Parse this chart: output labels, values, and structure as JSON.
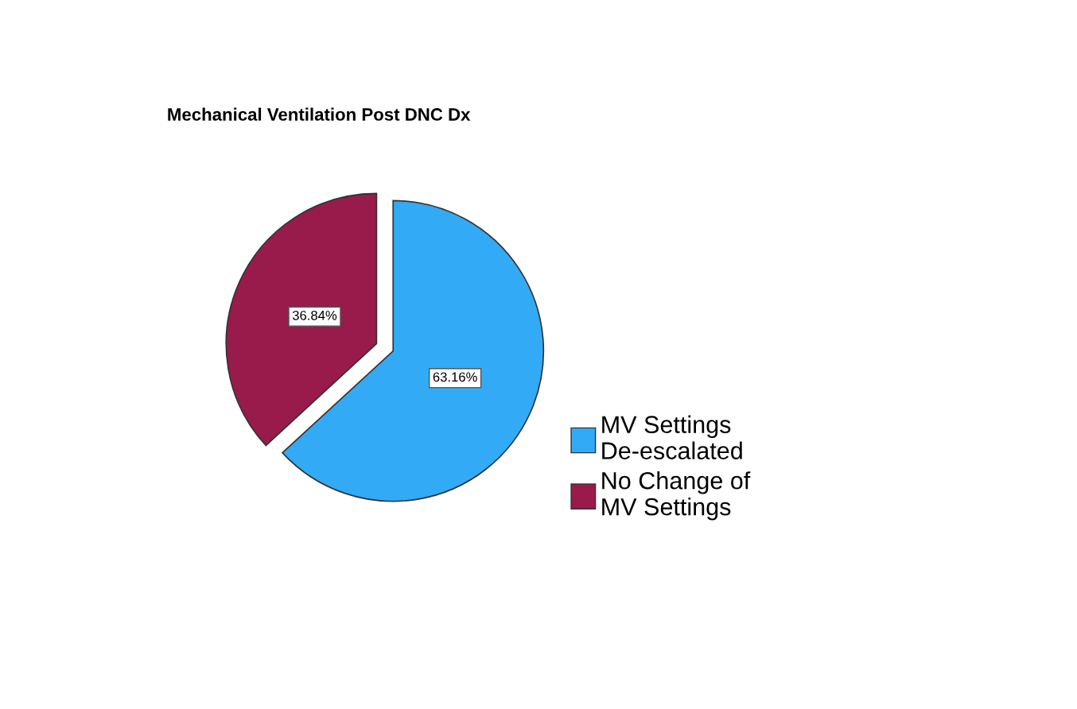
{
  "chart_data": {
    "type": "pie",
    "title": "Mechanical Ventilation Post DNC Dx",
    "categories": [
      "MV Settings\nDe-escalated",
      "No Change of\nMV Settings"
    ],
    "values": [
      63.16,
      36.84
    ],
    "colors": [
      "#33aaf5",
      "#981b4b"
    ],
    "value_labels": [
      "63.16%",
      "36.84%"
    ],
    "legend": "right"
  }
}
